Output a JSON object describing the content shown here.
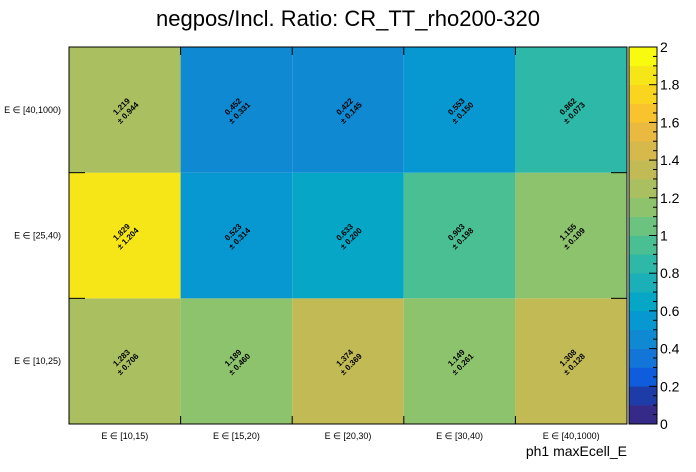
{
  "chart_data": {
    "type": "heatmap",
    "title": "negpos/Incl. Ratio: CR_TT_rho200-320",
    "xlabel": "ph1 maxEcell_E",
    "ylabel": "",
    "x_categories": [
      "E ∈ [10,15)",
      "E ∈ [15,20)",
      "E ∈ [20,30)",
      "E ∈ [30,40)",
      "E ∈ [40,1000)"
    ],
    "y_categories": [
      "E ∈ [10,25)",
      "E ∈ [25,40)",
      "E ∈ [40,1000)"
    ],
    "values": [
      [
        1.283,
        1.189,
        1.374,
        1.149,
        1.308
      ],
      [
        1.829,
        0.523,
        0.633,
        0.903,
        1.155
      ],
      [
        1.219,
        0.452,
        0.422,
        0.553,
        0.862
      ]
    ],
    "errors": [
      [
        0.706,
        0.46,
        0.369,
        0.261,
        0.128
      ],
      [
        1.204,
        0.314,
        0.2,
        0.198,
        0.109
      ],
      [
        0.944,
        0.331,
        0.145,
        0.15,
        0.073
      ]
    ],
    "value_labels": [
      [
        "1.283",
        "1.189",
        "1.374",
        "1.149",
        "1.308"
      ],
      [
        "1.829",
        "0.523",
        "0.633",
        "0.903",
        "1.155"
      ],
      [
        "1.219",
        "0.452",
        "0.422",
        "0.553",
        "0.862"
      ]
    ],
    "error_labels": [
      [
        "± 0.706",
        "± 0.460",
        "± 0.369",
        "± 0.261",
        "± 0.128"
      ],
      [
        "± 1.204",
        "± 0.314",
        "± 0.200",
        "± 0.198",
        "± 0.109"
      ],
      [
        "± 0.944",
        "± 0.331",
        "± 0.145",
        "± 0.150",
        "± 0.073"
      ]
    ],
    "zlim": [
      0,
      2
    ],
    "colorbar_ticks": [
      0,
      0.2,
      0.4,
      0.6,
      0.8,
      1,
      1.2,
      1.4,
      1.6,
      1.8,
      2
    ],
    "colorbar_tick_labels": [
      "0",
      "0.2",
      "0.4",
      "0.6",
      "0.8",
      "1",
      "1.2",
      "1.4",
      "1.6",
      "1.8",
      "2"
    ],
    "palette": [
      "#352a87",
      "#1e3ca7",
      "#0f5cdd",
      "#1375d8",
      "#0f89d2",
      "#0798d1",
      "#06a6c6",
      "#1bafb8",
      "#2db8a8",
      "#4bbf94",
      "#6cc380",
      "#8ec36e",
      "#aabf5f",
      "#c1ba55",
      "#d6b84b",
      "#e9b940",
      "#f8c32c",
      "#fad520",
      "#f6e618",
      "#f9fb0e"
    ],
    "grid": false
  }
}
